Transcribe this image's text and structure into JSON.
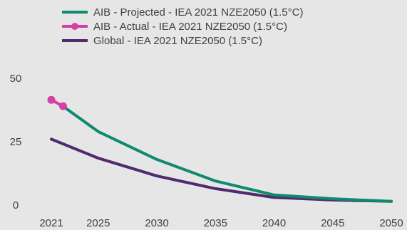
{
  "chart_data": {
    "type": "line",
    "title": "",
    "xlabel": "",
    "ylabel": "",
    "x_ticks": [
      "2021",
      "2025",
      "2030",
      "2035",
      "2040",
      "2045",
      "2050"
    ],
    "y_ticks": [
      "0",
      "25",
      "50"
    ],
    "xlim": [
      2021,
      2050
    ],
    "ylim": [
      0,
      50
    ],
    "grid": false,
    "legend_position": "top",
    "series": [
      {
        "name": "AIB - Projected - IEA 2021 NZE2050 (1.5°C)",
        "color": "#0e8a6e",
        "marker": "none",
        "points": [
          {
            "x": 2022,
            "y": 39
          },
          {
            "x": 2025,
            "y": 29
          },
          {
            "x": 2030,
            "y": 18
          },
          {
            "x": 2035,
            "y": 9.5
          },
          {
            "x": 2040,
            "y": 4
          },
          {
            "x": 2045,
            "y": 2.5
          },
          {
            "x": 2050,
            "y": 1.5
          }
        ]
      },
      {
        "name": "AIB - Actual - IEA 2021 NZE2050 (1.5°C)",
        "color": "#d63fa6",
        "marker": "circle",
        "points": [
          {
            "x": 2021,
            "y": 41.5
          },
          {
            "x": 2022,
            "y": 39
          }
        ]
      },
      {
        "name": "Global - IEA 2021 NZE2050 (1.5°C)",
        "color": "#4f2a6e",
        "marker": "none",
        "points": [
          {
            "x": 2021,
            "y": 26
          },
          {
            "x": 2025,
            "y": 18.5
          },
          {
            "x": 2030,
            "y": 11.5
          },
          {
            "x": 2035,
            "y": 6.5
          },
          {
            "x": 2040,
            "y": 3
          },
          {
            "x": 2045,
            "y": 2
          },
          {
            "x": 2050,
            "y": 1.5
          }
        ]
      }
    ]
  }
}
